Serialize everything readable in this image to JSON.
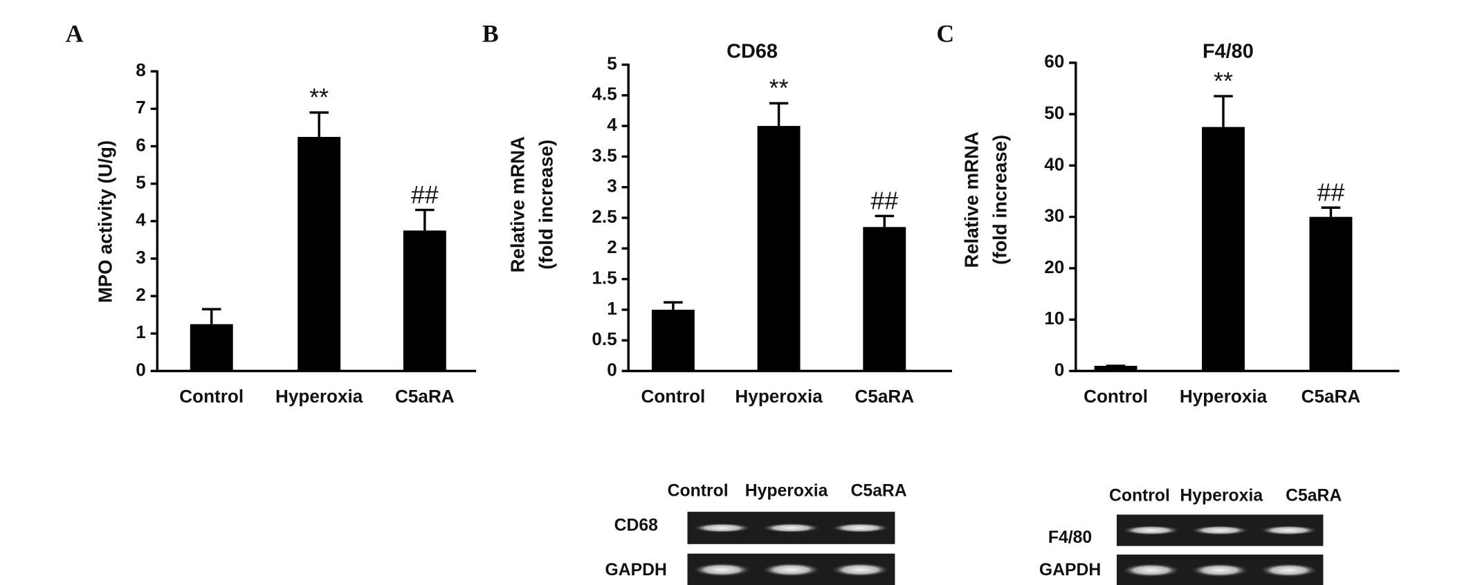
{
  "chart_data": [
    {
      "type": "bar",
      "panel": "A",
      "y_label": [
        "MPO activity (U/g)"
      ],
      "categories": [
        "Control",
        "Hyperoxia",
        "C5aRA"
      ],
      "values": [
        1.25,
        6.25,
        3.75
      ],
      "errors": [
        0.4,
        0.65,
        0.55
      ],
      "value_annotations": [
        null,
        "**",
        "##"
      ],
      "color": "#000000",
      "ylim": [
        0,
        8
      ],
      "yticks": [
        0,
        1,
        2,
        3,
        4,
        5,
        6,
        7,
        8
      ]
    },
    {
      "type": "bar",
      "panel": "B",
      "title": "CD68",
      "y_label": [
        "Relative mRNA",
        "(fold increase)"
      ],
      "categories": [
        "Control",
        "Hyperoxia",
        "C5aRA"
      ],
      "values": [
        1.0,
        4.0,
        2.35
      ],
      "errors": [
        0.12,
        0.37,
        0.18
      ],
      "value_annotations": [
        null,
        "**",
        "##"
      ],
      "color": "#000000",
      "ylim": [
        0,
        5
      ],
      "yticks": [
        0,
        0.5,
        1,
        1.5,
        2,
        2.5,
        3,
        3.5,
        4,
        4.5,
        5
      ]
    },
    {
      "type": "bar",
      "panel": "C",
      "title": "F4/80",
      "y_label": [
        "Relative mRNA",
        "(fold increase)"
      ],
      "categories": [
        "Control",
        "Hyperoxia",
        "C5aRA"
      ],
      "values": [
        1,
        47.5,
        30
      ],
      "errors": [
        0,
        6,
        1.8
      ],
      "value_annotations": [
        null,
        "**",
        "##"
      ],
      "color": "#000000",
      "ylim": [
        0,
        60
      ],
      "yticks": [
        0,
        10,
        20,
        30,
        40,
        50,
        60
      ]
    }
  ],
  "blots": [
    {
      "lanes": [
        "Control",
        "Hyperoxia",
        "C5aRA"
      ],
      "rows": [
        "CD68",
        "GAPDH"
      ]
    },
    {
      "lanes": [
        "Control",
        "Hyperoxia",
        "C5aRA"
      ],
      "rows": [
        "F4/80",
        "GAPDH"
      ]
    }
  ]
}
